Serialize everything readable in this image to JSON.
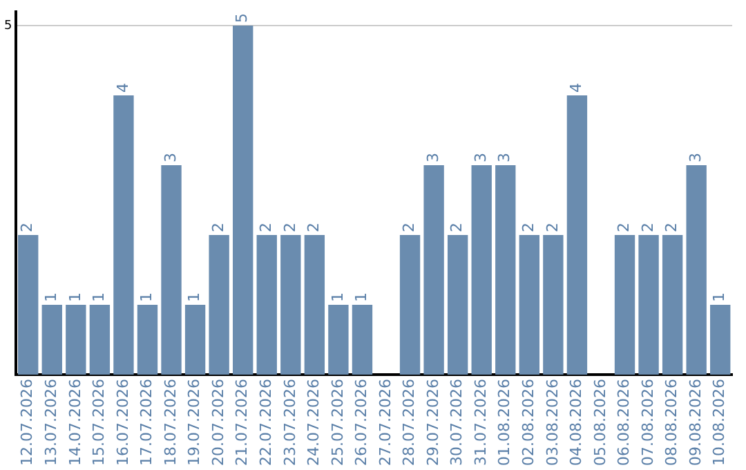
{
  "chart_data": {
    "type": "bar",
    "categories": [
      "12.07.2026",
      "13.07.2026",
      "14.07.2026",
      "15.07.2026",
      "16.07.2026",
      "17.07.2026",
      "18.07.2026",
      "19.07.2026",
      "20.07.2026",
      "21.07.2026",
      "22.07.2026",
      "23.07.2026",
      "24.07.2026",
      "25.07.2026",
      "26.07.2026",
      "27.07.2026",
      "28.07.2026",
      "29.07.2026",
      "30.07.2026",
      "31.07.2026",
      "01.08.2026",
      "02.08.2026",
      "03.08.2026",
      "04.08.2026",
      "05.08.2026",
      "06.08.2026",
      "07.08.2026",
      "08.08.2026",
      "09.08.2026",
      "10.08.2026"
    ],
    "values": [
      2,
      1,
      1,
      1,
      4,
      1,
      3,
      1,
      2,
      5,
      2,
      2,
      2,
      1,
      1,
      0,
      2,
      3,
      2,
      3,
      3,
      2,
      2,
      4,
      0,
      2,
      2,
      2,
      3,
      1
    ],
    "value_labels": [
      "2",
      "1",
      "1",
      "1",
      "4",
      "1",
      "3",
      "1",
      "2",
      "5",
      "2",
      "2",
      "2",
      "1",
      "1",
      null,
      "2",
      "3",
      "2",
      "3",
      "3",
      "2",
      "2",
      "4",
      null,
      "2",
      "2",
      "2",
      "3",
      "1"
    ],
    "color": "#6a8caf",
    "ylim": [
      0,
      5.2
    ],
    "yticks": [
      5
    ],
    "grid": "y",
    "legend": false
  }
}
